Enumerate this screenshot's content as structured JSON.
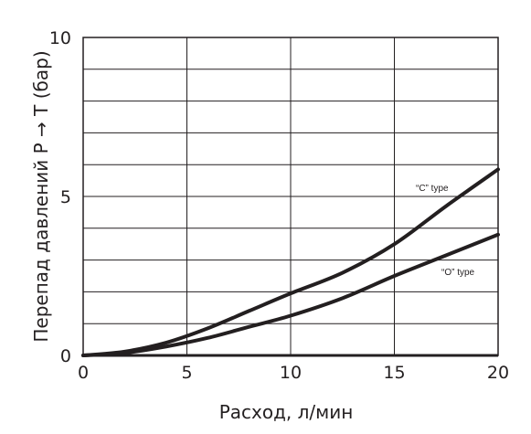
{
  "chart_data": {
    "type": "line",
    "xlabel": "Расход, л/мин",
    "ylabel": "Перепад давлений P → T (бар)",
    "xlim": [
      0,
      20
    ],
    "ylim": [
      0,
      10
    ],
    "x_ticks": [
      "0",
      "5",
      "10",
      "15",
      "20"
    ],
    "y_ticks": [
      "0",
      "5",
      "10"
    ],
    "x_grid_step": 5,
    "y_grid_step": 1,
    "grid": true,
    "legend": "inline labels next to curves",
    "series": [
      {
        "name": "“C” type",
        "x": [
          0,
          2,
          4,
          6,
          8,
          10,
          12.5,
          15,
          17.5,
          20
        ],
        "y": [
          0,
          0.12,
          0.4,
          0.85,
          1.4,
          1.95,
          2.6,
          3.5,
          4.7,
          5.85
        ]
      },
      {
        "name": "“O” type",
        "x": [
          0,
          2,
          4,
          6,
          8,
          10,
          12.5,
          15,
          17.5,
          20
        ],
        "y": [
          0,
          0.08,
          0.28,
          0.55,
          0.9,
          1.25,
          1.8,
          2.5,
          3.15,
          3.8
        ]
      }
    ],
    "colors": {
      "line": "#231f20",
      "grid": "#231f20",
      "background": "#ffffff"
    }
  }
}
